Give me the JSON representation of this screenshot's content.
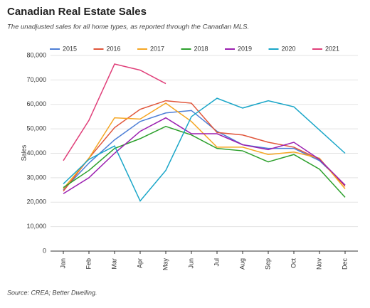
{
  "chart_data": {
    "type": "line",
    "title": "Canadian Real Estate Sales",
    "subtitle": "The unadjusted sales for all home types, as reported through the Canadian MLS.",
    "y_label": "Sales",
    "source": "Source: CREA; Better Dwelling.",
    "categories": [
      "Jan",
      "Feb",
      "Mar",
      "Apr",
      "May",
      "Jun",
      "Jul",
      "Aug",
      "Sep",
      "Oct",
      "Nov",
      "Dec"
    ],
    "series": [
      {
        "name": "2015",
        "color": "#4e7fd6",
        "values": [
          25000,
          36000,
          45500,
          53000,
          56500,
          57500,
          49000,
          43500,
          42000,
          42000,
          37000,
          27000
        ]
      },
      {
        "name": "2016",
        "color": "#e0553a",
        "values": [
          24500,
          38000,
          50500,
          58000,
          61500,
          60500,
          48500,
          47500,
          44500,
          42500,
          37500,
          26500
        ]
      },
      {
        "name": "2017",
        "color": "#f5a623",
        "values": [
          25500,
          38000,
          54500,
          54000,
          60500,
          53000,
          42500,
          42500,
          39500,
          40500,
          38000,
          25500
        ]
      },
      {
        "name": "2018",
        "color": "#2ca02c",
        "values": [
          26000,
          33000,
          42000,
          46000,
          51000,
          47500,
          42000,
          41000,
          36500,
          39500,
          33500,
          22000
        ]
      },
      {
        "name": "2019",
        "color": "#9b1fb0",
        "values": [
          23500,
          30000,
          40000,
          49000,
          54500,
          48000,
          48000,
          43500,
          41500,
          44500,
          37500,
          27000
        ]
      },
      {
        "name": "2020",
        "color": "#1aa6c8",
        "values": [
          27500,
          37500,
          43000,
          20500,
          33000,
          55000,
          62500,
          58500,
          61500,
          59000,
          49500,
          40000
        ]
      },
      {
        "name": "2021",
        "color": "#e0407a",
        "values": [
          37000,
          53500,
          76500,
          74000,
          68500,
          null,
          null,
          null,
          null,
          null,
          null,
          null
        ]
      }
    ],
    "ylim": [
      0,
      80000
    ],
    "yticks": [
      0,
      {
        "value": 10000,
        "label": "10,000"
      },
      {
        "value": 20000,
        "label": "20,000"
      },
      {
        "value": 30000,
        "label": "30,000"
      },
      {
        "value": 40000,
        "label": "40,000"
      },
      {
        "value": 50000,
        "label": "50,000"
      },
      {
        "value": 60000,
        "label": "60,000"
      },
      {
        "value": 70000,
        "label": "70,000"
      },
      {
        "value": 80000,
        "label": "80,000"
      }
    ],
    "grid": true,
    "legend": "top"
  }
}
